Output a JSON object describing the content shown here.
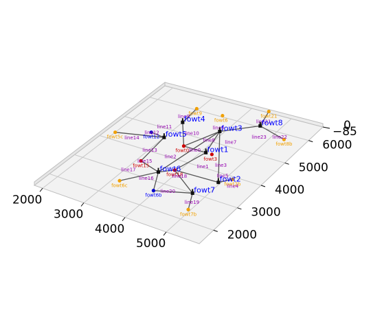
{
  "chart_data": {
    "type": "scatter",
    "projection": "3d",
    "title": "",
    "xlabel": "",
    "ylabel": "",
    "zlabel": "",
    "xlim": [
      1800,
      5800
    ],
    "ylim": [
      1400,
      6600
    ],
    "zlim": [
      -85,
      0
    ],
    "x_ticks": [
      "2000",
      "3000",
      "4000",
      "5000"
    ],
    "y_ticks": [
      "2000",
      "3000",
      "4000",
      "5000",
      "6000"
    ],
    "z_ticks": [
      "−85",
      "0"
    ],
    "grid": true,
    "turbines": [
      {
        "name": "fowt1",
        "x": 4100,
        "y": 4550
      },
      {
        "name": "fowt2",
        "x": 4950,
        "y": 3650
      },
      {
        "name": "fowt3",
        "x": 3900,
        "y": 5450
      },
      {
        "name": "fowt4",
        "x": 3000,
        "y": 5400
      },
      {
        "name": "fowt5",
        "x": 3000,
        "y": 4650
      },
      {
        "name": "fowt6",
        "x": 3650,
        "y": 3350
      },
      {
        "name": "fowt7",
        "x": 4700,
        "y": 3000
      },
      {
        "name": "fowt8",
        "x": 4550,
        "y": 6050
      }
    ],
    "anchors": [
      {
        "name": "fowt0",
        "x": 3550,
        "y": 4550,
        "color": "#cc0000"
      },
      {
        "name": "fowt3",
        "x": 4250,
        "y": 4550,
        "color": "#cc0000"
      },
      {
        "name": "fowt15",
        "x": 3100,
        "y": 3550,
        "color": "#cc0000"
      },
      {
        "name": "fowt18",
        "x": 3900,
        "y": 3600,
        "color": "#cc0000"
      },
      {
        "name": "fowt12",
        "x": 2650,
        "y": 4700,
        "color": "#0000cc"
      },
      {
        "name": "fowt6b",
        "x": 3950,
        "y": 2650,
        "color": "#0000cc"
      },
      {
        "name": "fowt6",
        "x": 3600,
        "y": 6050,
        "color": "#f0a000"
      },
      {
        "name": "fowt9",
        "x": 2950,
        "y": 6050,
        "color": "#f0a000"
      },
      {
        "name": "fowt21",
        "x": 4400,
        "y": 6650,
        "color": "#f0a000"
      },
      {
        "name": "fowt8b",
        "x": 5300,
        "y": 5800,
        "color": "#f0a000"
      },
      {
        "name": "fowt2b",
        "x": 5150,
        "y": 3900,
        "color": "#f0a000"
      },
      {
        "name": "fowt7b",
        "x": 4950,
        "y": 2400,
        "color": "#f0a000"
      },
      {
        "name": "fowt6c",
        "x": 3150,
        "y": 2600,
        "color": "#f0a000"
      },
      {
        "name": "fowt5c",
        "x": 2000,
        "y": 4300,
        "color": "#f0a000"
      }
    ],
    "line_labels": [
      {
        "name": "line0",
        "x": 3850,
        "y": 4550
      },
      {
        "name": "line1",
        "x": 4350,
        "y": 4050
      },
      {
        "name": "line2",
        "x": 3550,
        "y": 4050
      },
      {
        "name": "line3",
        "x": 4650,
        "y": 4300
      },
      {
        "name": "line4",
        "x": 5300,
        "y": 3700
      },
      {
        "name": "line5",
        "x": 4900,
        "y": 3950
      },
      {
        "name": "line6",
        "x": 3800,
        "y": 5600
      },
      {
        "name": "line7",
        "x": 4350,
        "y": 5200
      },
      {
        "name": "line8",
        "x": 3900,
        "y": 5050
      },
      {
        "name": "line9",
        "x": 2900,
        "y": 5650
      },
      {
        "name": "line10",
        "x": 3400,
        "y": 5100
      },
      {
        "name": "line11",
        "x": 2750,
        "y": 5050
      },
      {
        "name": "line12",
        "x": 2650,
        "y": 4700
      },
      {
        "name": "line13",
        "x": 3000,
        "y": 4050
      },
      {
        "name": "line14",
        "x": 2400,
        "y": 4300
      },
      {
        "name": "line15",
        "x": 3150,
        "y": 3600
      },
      {
        "name": "line16",
        "x": 3550,
        "y": 3000
      },
      {
        "name": "line17",
        "x": 3050,
        "y": 3100
      },
      {
        "name": "line18",
        "x": 4100,
        "y": 3450
      },
      {
        "name": "line19",
        "x": 4850,
        "y": 2700
      },
      {
        "name": "line20",
        "x": 4200,
        "y": 2800
      },
      {
        "name": "line21",
        "x": 4500,
        "y": 6250
      },
      {
        "name": "line22",
        "x": 5150,
        "y": 5850
      },
      {
        "name": "line23",
        "x": 4750,
        "y": 5650
      }
    ],
    "segments": [
      [
        "fowt1",
        "fowt0"
      ],
      [
        "fowt1",
        "fowt3"
      ],
      [
        "fowt2",
        "fowt3"
      ],
      [
        "fowt2",
        "fowt2b"
      ],
      [
        "fowt3",
        "fowt6"
      ],
      [
        "fowt3",
        "fowt0"
      ],
      [
        "fowt4",
        "fowt9"
      ],
      [
        "fowt4",
        "fowt0"
      ],
      [
        "fowt5",
        "fowt12"
      ],
      [
        "fowt5",
        "fowt5c"
      ],
      [
        "fowt5",
        "fowt15"
      ],
      [
        "fowt6",
        "fowt15"
      ],
      [
        "fowt6",
        "fowt6c"
      ],
      [
        "fowt6",
        "fowt6b"
      ],
      [
        "fowt7",
        "fowt18"
      ],
      [
        "fowt7",
        "fowt6b"
      ],
      [
        "fowt7",
        "fowt7b"
      ],
      [
        "fowt8",
        "fowt21"
      ],
      [
        "fowt8",
        "fowt8b"
      ],
      [
        "fowt8",
        "fowt3"
      ],
      [
        "fowt1",
        "fowt18"
      ],
      [
        "fowt2",
        "fowt18"
      ],
      [
        "fowt6",
        "fowt18"
      ]
    ]
  }
}
